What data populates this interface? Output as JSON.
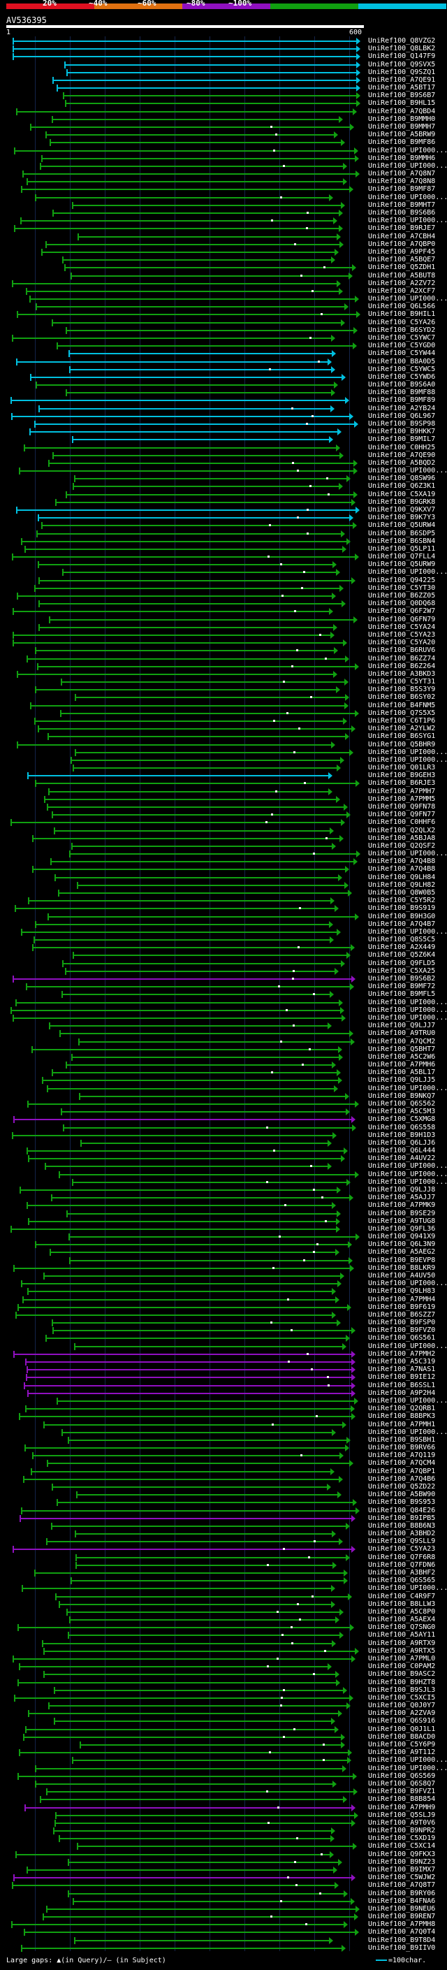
{
  "scale": {
    "labels": [
      "20%",
      "~40%",
      "~60%",
      "~80%",
      "~100%"
    ],
    "colors": [
      "#e01020",
      "#e07010",
      "#9010c0",
      "#10a010",
      "#00c0e0"
    ]
  },
  "query": {
    "id": "AV536395",
    "start": "1",
    "end": "600"
  },
  "footer": {
    "legend_text": "Large gaps: ▲(in Query)/— (in Subject)",
    "key_text": "=100char."
  },
  "hits": [
    "UniRef100_Q8VZG2",
    "UniRef100_Q8LBK2",
    "UniRef100_Q147F9",
    "UniRef100_Q9SVX5",
    "UniRef100_Q9SZQ1",
    "UniRef100_A7QE91",
    "UniRef100_A5BT17",
    "UniRef100_B9S6B7",
    "UniRef100_B9HL15",
    "UniRef100_A7QBD4",
    "UniRef100_B9MMH0",
    "UniRef100_B9MMH7",
    "UniRef100_A5BRW9",
    "UniRef100_B9MF86",
    "UniRef100_UPI000...",
    "UniRef100_B9MMH6",
    "UniRef100_UPI000...",
    "UniRef100_A7Q8N7",
    "UniRef100_A7Q8N8",
    "UniRef100_B9MF87",
    "UniRef100_UPI000...",
    "UniRef100_B9MHT7",
    "UniRef100_B9S6B6",
    "UniRef100_UPI000...",
    "UniRef100_B9RJE7",
    "UniRef100_A7CBH4",
    "UniRef100_A7QBP0",
    "UniRef100_A9PF45",
    "UniRef100_A5BQE7",
    "UniRef100_Q5ZDH1",
    "UniRef100_A5BUT8",
    "UniRef100_A2ZV72",
    "UniRef100_A2XCF7",
    "UniRef100_UPI000...",
    "UniRef100_Q6L566",
    "UniRef100_B9HIL1",
    "UniRef100_C5YA26",
    "UniRef100_B6SYD2",
    "UniRef100_C5YWC7",
    "UniRef100_C5YGD0",
    "UniRef100_C5YW44",
    "UniRef100_B8A0D5",
    "UniRef100_C5YWC5",
    "UniRef100_C5YWD6",
    "UniRef100_B9S6A0",
    "UniRef100_B9MF88",
    "UniRef100_B9MF89",
    "UniRef100_A2YB24",
    "UniRef100_Q6L967",
    "UniRef100_B9SP98",
    "UniRef100_B9HKK7",
    "UniRef100_B9MIL7",
    "UniRef100_C0HH25",
    "UniRef100_A7QE90",
    "UniRef100_A5BQD2",
    "UniRef100_UPI000...",
    "UniRef100_Q8SW96",
    "UniRef100_Q6Z3K1",
    "UniRef100_C5XA19",
    "UniRef100_B9GRK8",
    "UniRef100_Q9KXV7",
    "UniRef100_B9K7Y3",
    "UniRef100_Q5URW4",
    "UniRef100_B6SDP5",
    "UniRef100_B6SBN4",
    "UniRef100_Q5LP11",
    "UniRef100_Q7FLL4",
    "UniRef100_Q5URW9",
    "UniRef100_UPI000...",
    "UniRef100_Q94225",
    "UniRef100_C5YT30",
    "UniRef100_B6ZZ05",
    "UniRef100_Q0DQ68",
    "UniRef100_Q6F2W7",
    "UniRef100_Q6FN79",
    "UniRef100_C5YA24",
    "UniRef100_C5YA23",
    "UniRef100_C5YA20",
    "UniRef100_B6RUV6",
    "UniRef100_B6ZZ74",
    "UniRef100_B6Z264",
    "UniRef100_A3BKD3",
    "UniRef100_C5YT31",
    "UniRef100_B5S3Y9",
    "UniRef100_B6SY02",
    "UniRef100_B4FNM5",
    "UniRef100_Q7S5X5",
    "UniRef100_C6T1P6",
    "UniRef100_A2YLW2",
    "UniRef100_B6SYG1",
    "UniRef100_Q5BHR9",
    "UniRef100_UPI000...",
    "UniRef100_UPI000...",
    "UniRef100_Q01LR3",
    "UniRef100_B9GEH3",
    "UniRef100_B6RJE3",
    "UniRef100_A7PMH7",
    "UniRef100_A7PMM5",
    "UniRef100_Q9FN78",
    "UniRef100_Q9FN77",
    "UniRef100_C0HHF6",
    "UniRef100_Q2QLX2",
    "UniRef100_A5BJA8",
    "UniRef100_Q2QSF2",
    "UniRef100_UPI000...",
    "UniRef100_A7Q4B8",
    "UniRef100_A7Q4B8",
    "UniRef100_Q9LH84",
    "UniRef100_Q9LH82",
    "UniRef100_Q8W0B5",
    "UniRef100_C5Y5R2",
    "UniRef100_B9S919",
    "UniRef100_B9H3G0",
    "UniRef100_A7Q4B7",
    "UniRef100_UPI000...",
    "UniRef100_Q8S5C5",
    "UniRef100_A2X449",
    "UniRef100_Q5Z6K4",
    "UniRef100_Q9FLD5",
    "UniRef100_C5XA25",
    "UniRef100_B9S6B2",
    "UniRef100_B9MF72",
    "UniRef100_B9MFL5",
    "UniRef100_UPI000...",
    "UniRef100_UPI000...",
    "UniRef100_UPI000...",
    "UniRef100_Q9LJJ7",
    "UniRef100_A9TRU0",
    "UniRef100_A7QCM2",
    "UniRef100_Q5BHT7",
    "UniRef100_A5C2W6",
    "UniRef100_A7PMH6",
    "UniRef100_A5BL17",
    "UniRef100_Q9LJJ5",
    "UniRef100_UPI000...",
    "UniRef100_B9NKQ7",
    "UniRef100_Q6S562",
    "UniRef100_A5C5M3",
    "UniRef100_C5XMG8",
    "UniRef100_Q6S558",
    "UniRef100_B9H1D3",
    "UniRef100_Q6LJJ6",
    "UniRef100_Q6L444",
    "UniRef100_A4UV22",
    "UniRef100_UPI000...",
    "UniRef100_UPI000...",
    "UniRef100_UPI000...",
    "UniRef100_Q9LJJ8",
    "UniRef100_A5AJJ7",
    "UniRef100_A7PMK9",
    "UniRef100_B9SE29",
    "UniRef100_A9TUG8",
    "UniRef100_Q9FL36",
    "UniRef100_Q941X9",
    "UniRef100_Q6L3N9",
    "UniRef100_A5AEG2",
    "UniRef100_B9EVP8",
    "UniRef100_B8LKR9",
    "UniRef100_A4UV50",
    "UniRef100_UPI000...",
    "UniRef100_Q9LH83",
    "UniRef100_A7PMH4",
    "UniRef100_B9F619",
    "UniRef100_B6SZZ7",
    "UniRef100_B9FSP0",
    "UniRef100_B9FVZ0",
    "UniRef100_Q6S561",
    "UniRef100_UPI000...",
    "UniRef100_A7PMH2",
    "UniRef100_A5C319",
    "UniRef100_A7NAS1",
    "UniRef100_B9IE12",
    "UniRef100_B6SSL1",
    "UniRef100_A9P2H4",
    "UniRef100_UPI000...",
    "UniRef100_Q2QRB1",
    "UniRef100_B8BPK3",
    "UniRef100_A7PMH1",
    "UniRef100_UPI000...",
    "UniRef100_B9SBH1",
    "UniRef100_B9RV66",
    "UniRef100_A7Q119",
    "UniRef100_A7QCM4",
    "UniRef100_A7QBP1",
    "UniRef100_A7Q4B6",
    "UniRef100_Q5ZD22",
    "UniRef100_A5BW90",
    "UniRef100_B9S953",
    "UniRef100_Q84E26",
    "UniRef100_B9IPB5",
    "UniRef100_B8B6N3",
    "UniRef100_A3BHD2",
    "UniRef100_Q9SLL9",
    "UniRef100_C5YA23",
    "UniRef100_Q7F6R8",
    "UniRef100_Q7FDN6",
    "UniRef100_A3BHF2",
    "UniRef100_Q6S565",
    "UniRef100_UPI000...",
    "UniRef100_C4R9F7",
    "UniRef100_B8LLW3",
    "UniRef100_A5C8P0",
    "UniRef100_A5AEX4",
    "UniRef100_Q7SNG0",
    "UniRef100_A5AY11",
    "UniRef100_A9RTX9",
    "UniRef100_A9RTX5",
    "UniRef100_A7PML0",
    "UniRef100_C0PAM2",
    "UniRef100_B9ASC2",
    "UniRef100_B9HZT8",
    "UniRef100_B9SJL3",
    "UniRef100_C5XCI5",
    "UniRef100_Q0J0Y7",
    "UniRef100_A2ZVA9",
    "UniRef100_Q6S916",
    "UniRef100_Q0J1L1",
    "UniRef100_B8ACD0",
    "UniRef100_C5Y6P9",
    "UniRef100_A9T112",
    "UniRef100_UPI000...",
    "UniRef100_UPI000...",
    "UniRef100_Q6S569",
    "UniRef100_Q6S8Q7",
    "UniRef100_B9FVZ1",
    "UniRef100_B8B854",
    "UniRef100_A7PMH9",
    "UniRef100_Q5SLJ9",
    "UniRef100_A9T0V6",
    "UniRef100_B9NPR2",
    "UniRef100_C5XD19",
    "UniRef100_C5XC14",
    "UniRef100_Q9FKX3",
    "UniRef100_B9NZ23",
    "UniRef100_B9IMX7",
    "UniRef100_C5WJW2",
    "UniRef100_A7Q8T7",
    "UniRef100_B9RY06",
    "UniRef100_B4FNA6",
    "UniRef100_B9NEU6",
    "UniRef100_B9REN7",
    "UniRef100_A7PMH8",
    "UniRef100_A7Q0T4",
    "UniRef100_B9T8D4",
    "UniRef100_B9IIV0"
  ]
}
